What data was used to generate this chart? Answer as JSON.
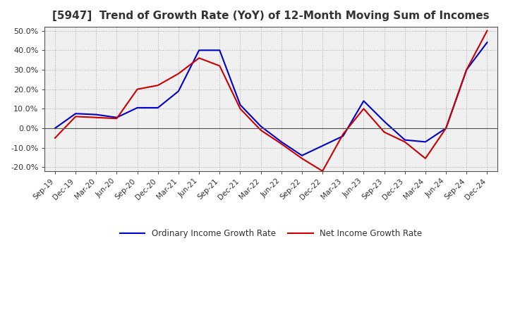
{
  "title": "[5947]  Trend of Growth Rate (YoY) of 12-Month Moving Sum of Incomes",
  "title_fontsize": 11,
  "background_color": "#ffffff",
  "plot_bg_color": "#f0f0f0",
  "grid_color": "#aaaaaa",
  "x_labels": [
    "Sep-19",
    "Dec-19",
    "Mar-20",
    "Jun-20",
    "Sep-20",
    "Dec-20",
    "Mar-21",
    "Jun-21",
    "Sep-21",
    "Dec-21",
    "Mar-22",
    "Jun-22",
    "Sep-22",
    "Dec-22",
    "Mar-23",
    "Jun-23",
    "Sep-23",
    "Dec-23",
    "Mar-24",
    "Jun-24",
    "Sep-24",
    "Dec-24"
  ],
  "ordinary_income": [
    0.0,
    7.5,
    7.0,
    5.5,
    10.5,
    10.5,
    19.0,
    40.0,
    40.0,
    12.0,
    1.0,
    -7.0,
    -14.0,
    -9.0,
    -4.0,
    14.0,
    3.5,
    -6.0,
    -7.0,
    0.0,
    30.0,
    44.0
  ],
  "net_income": [
    -5.0,
    6.0,
    5.5,
    5.0,
    20.0,
    22.0,
    28.0,
    36.0,
    32.0,
    10.0,
    -1.0,
    -8.0,
    -15.5,
    -22.0,
    -3.0,
    10.0,
    -2.0,
    -7.0,
    -15.5,
    0.0,
    30.0,
    50.0
  ],
  "ordinary_color": "#0000cc",
  "net_color": "#cc0000",
  "line_width": 1.5,
  "ylim": [
    -22,
    52
  ],
  "yticks": [
    -20.0,
    -10.0,
    0.0,
    10.0,
    20.0,
    30.0,
    40.0,
    50.0
  ],
  "legend_ordinary": "Ordinary Income Growth Rate",
  "legend_net": "Net Income Growth Rate"
}
